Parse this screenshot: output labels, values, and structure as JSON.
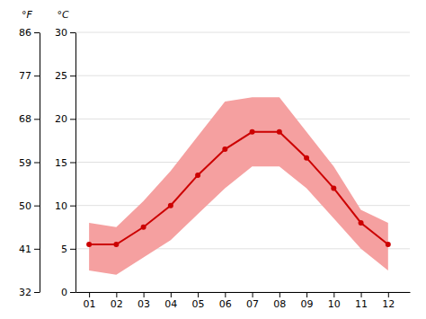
{
  "chart_data": {
    "type": "line",
    "ylabel": "°C",
    "y2label": "°F",
    "x": [
      1,
      2,
      3,
      4,
      5,
      6,
      7,
      8,
      9,
      10,
      11,
      12
    ],
    "series": [
      {
        "type": "band",
        "color": "#f5a0a0",
        "low": [
          2.5,
          2.0,
          4.0,
          6.0,
          9.0,
          12.0,
          14.5,
          14.5,
          12.0,
          8.5,
          5.0,
          2.5
        ],
        "high": [
          8.0,
          7.5,
          10.5,
          14.0,
          18.0,
          22.0,
          22.5,
          22.5,
          18.5,
          14.5,
          9.5,
          8.0
        ]
      },
      {
        "type": "line",
        "color": "#cc0000",
        "marker": "circle",
        "values": [
          5.5,
          5.5,
          7.5,
          10.0,
          13.5,
          16.5,
          18.5,
          18.5,
          15.5,
          12.0,
          8.0,
          5.5
        ]
      }
    ],
    "xlim": [
      0.5,
      12.8
    ],
    "xticks": [
      {
        "value": 1,
        "label": "01"
      },
      {
        "value": 2,
        "label": "02"
      },
      {
        "value": 3,
        "label": "03"
      },
      {
        "value": 4,
        "label": "04"
      },
      {
        "value": 5,
        "label": "05"
      },
      {
        "value": 6,
        "label": "06"
      },
      {
        "value": 7,
        "label": "07"
      },
      {
        "value": 8,
        "label": "08"
      },
      {
        "value": 9,
        "label": "09"
      },
      {
        "value": 10,
        "label": "10"
      },
      {
        "value": 11,
        "label": "11"
      },
      {
        "value": 12,
        "label": "12"
      }
    ],
    "ylim": [
      0,
      30
    ],
    "yticks": [
      0,
      5,
      10,
      15,
      20,
      25,
      30
    ],
    "y2lim": [
      32,
      86
    ],
    "y2ticks": [
      32,
      41,
      50,
      59,
      68,
      77,
      86
    ],
    "grid": true
  }
}
